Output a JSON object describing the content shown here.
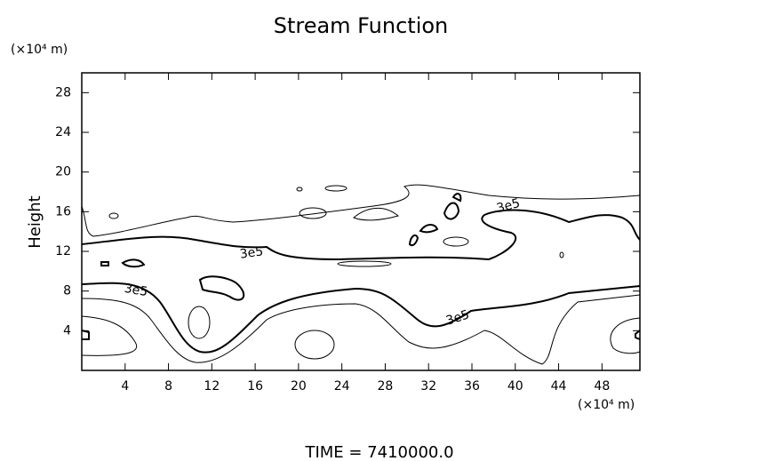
{
  "chart_data": {
    "type": "contour",
    "title": "Stream Function",
    "ylabel": "Height",
    "yunit": "(×10⁴ m)",
    "xunit": "(×10⁴ m)",
    "footer": "TIME  =  7410000.0",
    "contour_labels": [
      "3e5",
      "3e5",
      "3e5",
      "3e5"
    ],
    "xlim": [
      0,
      51.5
    ],
    "xticks": [
      4,
      8,
      12,
      16,
      20,
      24,
      28,
      32,
      36,
      40,
      44,
      48
    ],
    "ylim": [
      0,
      30
    ],
    "yticks": [
      4,
      8,
      12,
      16,
      20,
      24,
      28
    ],
    "color": "#000000"
  }
}
